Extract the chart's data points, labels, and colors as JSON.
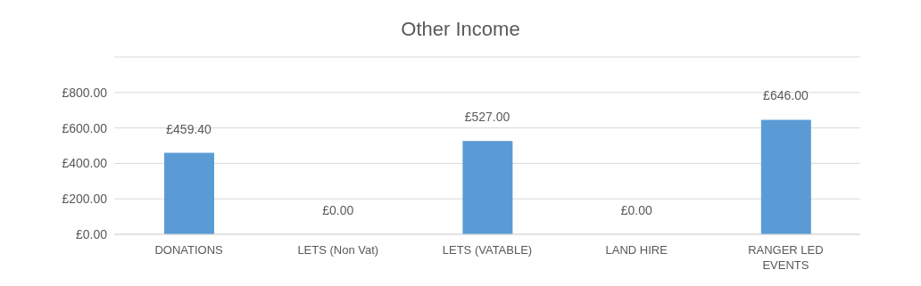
{
  "chart_data": {
    "type": "bar",
    "title": "Other Income",
    "categories": [
      "DONATIONS",
      "LETS (Non Vat)",
      "LETS (VATABLE)",
      "LAND HIRE",
      "RANGER LED EVENTS"
    ],
    "values": [
      459.4,
      0,
      527,
      0,
      646
    ],
    "value_labels": [
      "£459.40",
      "£0.00",
      "£527.00",
      "£0.00",
      "£646.00"
    ],
    "color": "#5b9bd5",
    "ylim": [
      0,
      1000
    ],
    "yticks": [
      {
        "value": 0,
        "label": "£0.00"
      },
      {
        "value": 200,
        "label": "£200.00"
      },
      {
        "value": 400,
        "label": "£400.00"
      },
      {
        "value": 600,
        "label": "£600.00"
      },
      {
        "value": 800,
        "label": "£800.00"
      },
      {
        "value": 1000,
        "label": null
      }
    ],
    "grid": "y",
    "legend": false
  }
}
